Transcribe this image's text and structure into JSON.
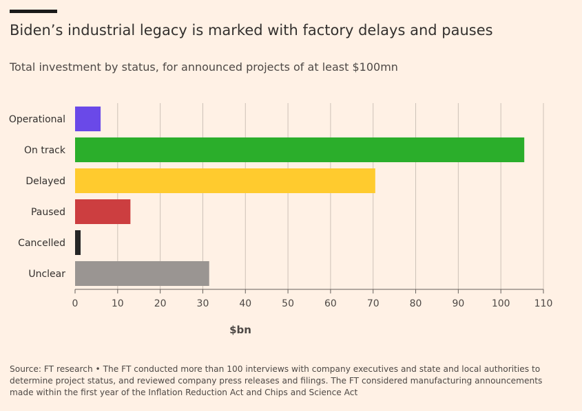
{
  "title": "Biden’s industrial legacy is marked with factory delays and pauses",
  "subtitle": "Total investment by status, for announced projects of at least $100mn",
  "source": "Source: FT research • The FT conducted more than 100 interviews with company executives and state and local authorities to determine project status, and reviewed company press releases and filings. The FT considered manufacturing announcements made within the first year of the Inflation Reduction Act and Chips and Science Act",
  "chart_data": {
    "type": "bar",
    "orientation": "horizontal",
    "title": "Biden’s industrial legacy is marked with factory delays and pauses",
    "subtitle": "Total investment by status, for announced projects of at least $100mn",
    "xlabel": "$bn",
    "ylabel": "",
    "xlim": [
      0,
      110
    ],
    "xticks": [
      0,
      10,
      20,
      30,
      40,
      50,
      60,
      70,
      80,
      90,
      100,
      110
    ],
    "grid": true,
    "categories": [
      "Operational",
      "On track",
      "Delayed",
      "Paused",
      "Cancelled",
      "Unclear"
    ],
    "values": [
      6,
      105.5,
      70.5,
      13,
      1.3,
      31.5
    ],
    "colors": [
      "#6a49e8",
      "#2bae2b",
      "#ffcb2e",
      "#cc3e40",
      "#262626",
      "#9a9592"
    ]
  }
}
